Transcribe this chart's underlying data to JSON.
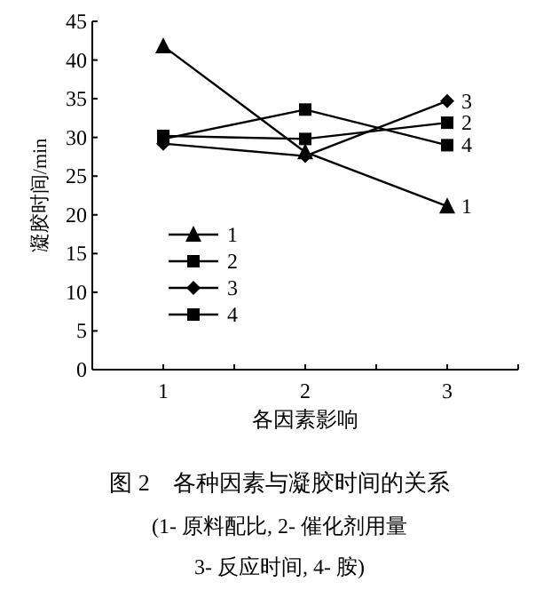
{
  "chart_data": {
    "type": "line",
    "title": "图 2　各种因素与凝胶时间的关系",
    "xlabel": "各因素影响",
    "ylabel": "凝胶时间/min",
    "annotations": [
      "(1- 原料配比, 2- 催化剂用量",
      "3- 反应时间, 4- 胺)"
    ],
    "x": [
      1,
      2,
      3
    ],
    "xlim": [
      0.5,
      3.5
    ],
    "xticks": [
      1,
      {
        "value": 1.5,
        "label": null
      },
      2,
      {
        "value": 2.5,
        "label": null
      },
      3,
      {
        "value": 3.5,
        "label": null
      }
    ],
    "ylim": [
      0,
      45
    ],
    "yticks": [
      0,
      5,
      10,
      15,
      20,
      25,
      30,
      35,
      40,
      45
    ],
    "grid": false,
    "legend": "left",
    "line_style": "solid",
    "series": [
      {
        "name": "1",
        "color": "#000000",
        "marker": "triangle",
        "values": [
          41.8,
          28.1,
          21.1
        ]
      },
      {
        "name": "2",
        "color": "#000000",
        "marker": "square",
        "values": [
          30.2,
          29.8,
          31.9
        ]
      },
      {
        "name": "3",
        "color": "#000000",
        "marker": "diamond",
        "values": [
          29.2,
          27.6,
          34.7
        ]
      },
      {
        "name": "4",
        "color": "#000000",
        "marker": "square",
        "values": [
          29.8,
          33.6,
          29.0
        ]
      }
    ]
  }
}
